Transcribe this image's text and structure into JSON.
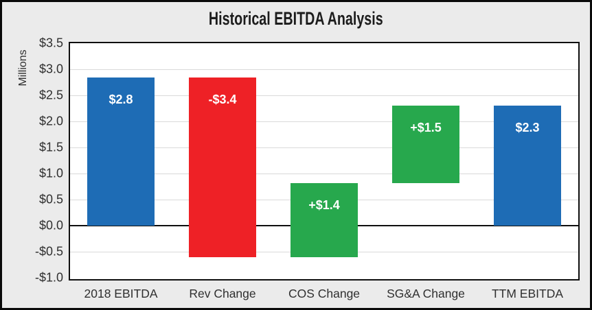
{
  "chart_data": {
    "type": "bar",
    "subtype": "waterfall",
    "title": "Historical EBITDA Analysis",
    "xlabel": "",
    "ylabel": "Millions",
    "ylim": [
      -1.0,
      3.5
    ],
    "grid": true,
    "legend": false,
    "yticks": [
      {
        "value": 3.5,
        "label": "$3.5"
      },
      {
        "value": 3.0,
        "label": "$3.0"
      },
      {
        "value": 2.5,
        "label": "$2.5"
      },
      {
        "value": 2.0,
        "label": "$2.0"
      },
      {
        "value": 1.5,
        "label": "$1.5"
      },
      {
        "value": 1.0,
        "label": "$1.0"
      },
      {
        "value": 0.5,
        "label": "$0.5"
      },
      {
        "value": 0.0,
        "label": "$0.0"
      },
      {
        "value": -0.5,
        "label": "-$0.5"
      },
      {
        "value": -1.0,
        "label": "-$1.0"
      }
    ],
    "categories": [
      "2018 EBITDA",
      "Rev Change",
      "COS Change",
      "SG&A Change",
      "TTM EBITDA"
    ],
    "bars": [
      {
        "category": "2018 EBITDA",
        "from": 0.0,
        "to": 2.84,
        "change": 2.84,
        "color": "blue",
        "label": "$2.8"
      },
      {
        "category": "Rev Change",
        "from": 2.84,
        "to": -0.6,
        "change": -3.44,
        "color": "red",
        "label": "-$3.4"
      },
      {
        "category": "COS Change",
        "from": -0.6,
        "to": 0.81,
        "change": 1.41,
        "color": "green",
        "label": "+$1.4"
      },
      {
        "category": "SG&A Change",
        "from": 0.81,
        "to": 2.3,
        "change": 1.49,
        "color": "green",
        "label": "+$1.5"
      },
      {
        "category": "TTM EBITDA",
        "from": 0.0,
        "to": 2.3,
        "change": 2.3,
        "color": "blue",
        "label": "$2.3"
      }
    ],
    "colors": {
      "blue": "#1E6CB5",
      "red": "#EE2126",
      "green": "#27A84D",
      "gridline": "#D9D9D9",
      "axis_line": "#0F0F0F",
      "background": "#EBEBEB",
      "plot_background": "#FFFFFF",
      "text": "#2F2F2F"
    }
  }
}
